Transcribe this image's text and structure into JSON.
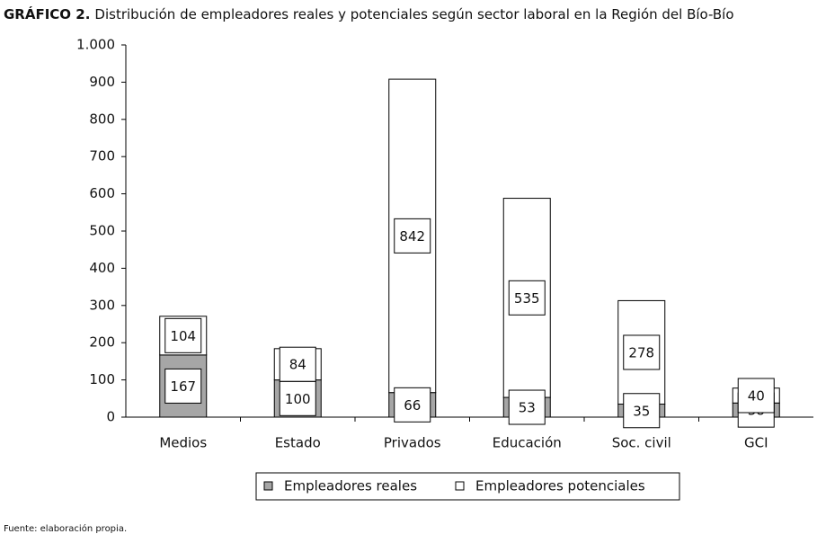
{
  "chart_data": {
    "type": "stacked_bar",
    "figure_label": "GRÁFICO 2.",
    "title": "Distribución de empleadores reales y potenciales según sector laboral en la Región del Bío-Bío",
    "categories": [
      "Medios",
      "Estado",
      "Privados",
      "Educación",
      "Soc. civil",
      "GCI"
    ],
    "series": [
      {
        "name": "Empleadores reales",
        "color": "#a6a6a6",
        "values": [
          167,
          100,
          66,
          53,
          35,
          38
        ]
      },
      {
        "name": "Empleadores potenciales",
        "color": "#ffffff",
        "values": [
          104,
          84,
          842,
          535,
          278,
          40
        ]
      }
    ],
    "ylim": [
      0,
      1000
    ],
    "yticks": [
      0,
      100,
      200,
      300,
      400,
      500,
      600,
      700,
      800,
      900,
      {
        "value": 1000,
        "label": "1.000"
      }
    ],
    "legend": "bottom",
    "source": "Fuente: elaboración propia."
  }
}
